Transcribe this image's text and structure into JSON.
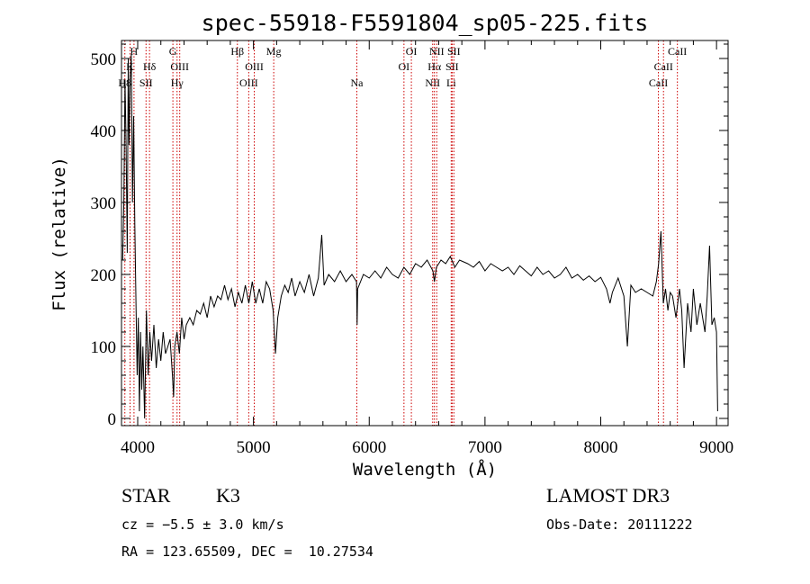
{
  "chart_data": {
    "type": "line",
    "title": "spec-55918-F5591804_sp05-225.fits",
    "xlabel": "Wavelength (Å)",
    "ylabel": "Flux (relative)",
    "xlim": [
      3860,
      9100
    ],
    "ylim": [
      -10,
      525
    ],
    "xticks": [
      4000,
      5000,
      6000,
      7000,
      8000,
      9000
    ],
    "yticks": [
      0,
      100,
      200,
      300,
      400,
      500
    ],
    "series": [
      {
        "name": "flux",
        "points": [
          [
            3870,
            220
          ],
          [
            3880,
            300
          ],
          [
            3890,
            470
          ],
          [
            3900,
            380
          ],
          [
            3910,
            230
          ],
          [
            3918,
            500
          ],
          [
            3925,
            380
          ],
          [
            3935,
            470
          ],
          [
            3945,
            505
          ],
          [
            3955,
            300
          ],
          [
            3965,
            420
          ],
          [
            3975,
            270
          ],
          [
            3985,
            160
          ],
          [
            3995,
            60
          ],
          [
            4005,
            140
          ],
          [
            4015,
            10
          ],
          [
            4025,
            120
          ],
          [
            4035,
            40
          ],
          [
            4045,
            100
          ],
          [
            4060,
            0
          ],
          [
            4075,
            150
          ],
          [
            4090,
            60
          ],
          [
            4105,
            120
          ],
          [
            4120,
            80
          ],
          [
            4140,
            130
          ],
          [
            4160,
            70
          ],
          [
            4180,
            110
          ],
          [
            4200,
            80
          ],
          [
            4220,
            120
          ],
          [
            4240,
            90
          ],
          [
            4260,
            100
          ],
          [
            4280,
            110
          ],
          [
            4300,
            60
          ],
          [
            4310,
            30
          ],
          [
            4320,
            100
          ],
          [
            4340,
            120
          ],
          [
            4360,
            90
          ],
          [
            4380,
            140
          ],
          [
            4400,
            110
          ],
          [
            4420,
            130
          ],
          [
            4450,
            140
          ],
          [
            4480,
            130
          ],
          [
            4510,
            150
          ],
          [
            4540,
            145
          ],
          [
            4570,
            160
          ],
          [
            4600,
            140
          ],
          [
            4630,
            170
          ],
          [
            4660,
            155
          ],
          [
            4690,
            170
          ],
          [
            4720,
            165
          ],
          [
            4750,
            185
          ],
          [
            4780,
            165
          ],
          [
            4810,
            180
          ],
          [
            4840,
            155
          ],
          [
            4870,
            175
          ],
          [
            4900,
            160
          ],
          [
            4930,
            185
          ],
          [
            4960,
            160
          ],
          [
            4990,
            190
          ],
          [
            5020,
            160
          ],
          [
            5050,
            180
          ],
          [
            5080,
            160
          ],
          [
            5110,
            190
          ],
          [
            5140,
            180
          ],
          [
            5170,
            150
          ],
          [
            5180,
            120
          ],
          [
            5190,
            90
          ],
          [
            5210,
            140
          ],
          [
            5240,
            170
          ],
          [
            5270,
            185
          ],
          [
            5300,
            175
          ],
          [
            5330,
            195
          ],
          [
            5360,
            170
          ],
          [
            5400,
            190
          ],
          [
            5440,
            175
          ],
          [
            5480,
            200
          ],
          [
            5520,
            170
          ],
          [
            5560,
            195
          ],
          [
            5590,
            255
          ],
          [
            5610,
            185
          ],
          [
            5650,
            200
          ],
          [
            5700,
            190
          ],
          [
            5750,
            205
          ],
          [
            5800,
            190
          ],
          [
            5850,
            200
          ],
          [
            5890,
            190
          ],
          [
            5895,
            130
          ],
          [
            5900,
            180
          ],
          [
            5950,
            200
          ],
          [
            6000,
            195
          ],
          [
            6050,
            205
          ],
          [
            6100,
            195
          ],
          [
            6150,
            210
          ],
          [
            6200,
            200
          ],
          [
            6250,
            195
          ],
          [
            6300,
            210
          ],
          [
            6350,
            200
          ],
          [
            6400,
            215
          ],
          [
            6450,
            210
          ],
          [
            6500,
            220
          ],
          [
            6550,
            205
          ],
          [
            6563,
            190
          ],
          [
            6580,
            210
          ],
          [
            6620,
            220
          ],
          [
            6660,
            215
          ],
          [
            6700,
            225
          ],
          [
            6740,
            210
          ],
          [
            6780,
            220
          ],
          [
            6850,
            215
          ],
          [
            6900,
            210
          ],
          [
            6950,
            218
          ],
          [
            7000,
            205
          ],
          [
            7050,
            215
          ],
          [
            7100,
            210
          ],
          [
            7150,
            205
          ],
          [
            7200,
            210
          ],
          [
            7250,
            200
          ],
          [
            7300,
            212
          ],
          [
            7350,
            205
          ],
          [
            7400,
            198
          ],
          [
            7450,
            210
          ],
          [
            7500,
            200
          ],
          [
            7550,
            205
          ],
          [
            7600,
            195
          ],
          [
            7650,
            200
          ],
          [
            7700,
            210
          ],
          [
            7750,
            195
          ],
          [
            7800,
            200
          ],
          [
            7850,
            192
          ],
          [
            7900,
            198
          ],
          [
            7950,
            190
          ],
          [
            8000,
            196
          ],
          [
            8050,
            180
          ],
          [
            8080,
            160
          ],
          [
            8100,
            175
          ],
          [
            8150,
            195
          ],
          [
            8200,
            170
          ],
          [
            8230,
            100
          ],
          [
            8260,
            185
          ],
          [
            8300,
            175
          ],
          [
            8350,
            180
          ],
          [
            8400,
            175
          ],
          [
            8450,
            170
          ],
          [
            8480,
            190
          ],
          [
            8500,
            215
          ],
          [
            8520,
            260
          ],
          [
            8540,
            160
          ],
          [
            8560,
            180
          ],
          [
            8580,
            150
          ],
          [
            8600,
            175
          ],
          [
            8620,
            170
          ],
          [
            8650,
            140
          ],
          [
            8680,
            180
          ],
          [
            8700,
            150
          ],
          [
            8720,
            70
          ],
          [
            8750,
            160
          ],
          [
            8780,
            120
          ],
          [
            8800,
            180
          ],
          [
            8830,
            130
          ],
          [
            8860,
            160
          ],
          [
            8880,
            140
          ],
          [
            8900,
            120
          ],
          [
            8920,
            170
          ],
          [
            8940,
            240
          ],
          [
            8960,
            130
          ],
          [
            8980,
            140
          ],
          [
            9000,
            120
          ],
          [
            9010,
            10
          ]
        ]
      }
    ],
    "lines": [
      {
        "x": 3889,
        "label": "H8",
        "row": 2
      },
      {
        "x": 3934,
        "label": "K",
        "row": 1
      },
      {
        "x": 3968,
        "label": "H",
        "row": 0
      },
      {
        "x": 4072,
        "label": "SII",
        "row": 2
      },
      {
        "x": 4102,
        "label": "Hδ",
        "row": 1
      },
      {
        "x": 4304,
        "label": "G",
        "row": 0
      },
      {
        "x": 4340,
        "label": "Hγ",
        "row": 2
      },
      {
        "x": 4363,
        "label": "OIII",
        "row": 1
      },
      {
        "x": 4861,
        "label": "Hβ",
        "row": 0
      },
      {
        "x": 4959,
        "label": "OIII",
        "row": 2
      },
      {
        "x": 5007,
        "label": "OIII",
        "row": 1
      },
      {
        "x": 5175,
        "label": "Mg",
        "row": 0
      },
      {
        "x": 5893,
        "label": "Na",
        "row": 2
      },
      {
        "x": 6300,
        "label": "OI",
        "row": 1
      },
      {
        "x": 6364,
        "label": "OI",
        "row": 0
      },
      {
        "x": 6548,
        "label": "NII",
        "row": 2
      },
      {
        "x": 6563,
        "label": "Hα",
        "row": 1
      },
      {
        "x": 6583,
        "label": "NII",
        "row": 0
      },
      {
        "x": 6708,
        "label": "Li",
        "row": 2
      },
      {
        "x": 6716,
        "label": "SII",
        "row": 1
      },
      {
        "x": 6731,
        "label": "SII",
        "row": 0
      },
      {
        "x": 8498,
        "label": "CaII",
        "row": 2
      },
      {
        "x": 8542,
        "label": "CaII",
        "row": 1
      },
      {
        "x": 8662,
        "label": "CaII",
        "row": 0
      }
    ],
    "line_color": "#cc0000",
    "curve_color": "#000000"
  },
  "info": {
    "object_class": "STAR",
    "subclass": "K3",
    "survey": "LAMOST DR3",
    "cz": "cz = −5.5 ± 3.0 km/s",
    "obs_date": "Obs-Date: 20111222",
    "coords": "RA = 123.65509, DEC =  10.27534"
  }
}
